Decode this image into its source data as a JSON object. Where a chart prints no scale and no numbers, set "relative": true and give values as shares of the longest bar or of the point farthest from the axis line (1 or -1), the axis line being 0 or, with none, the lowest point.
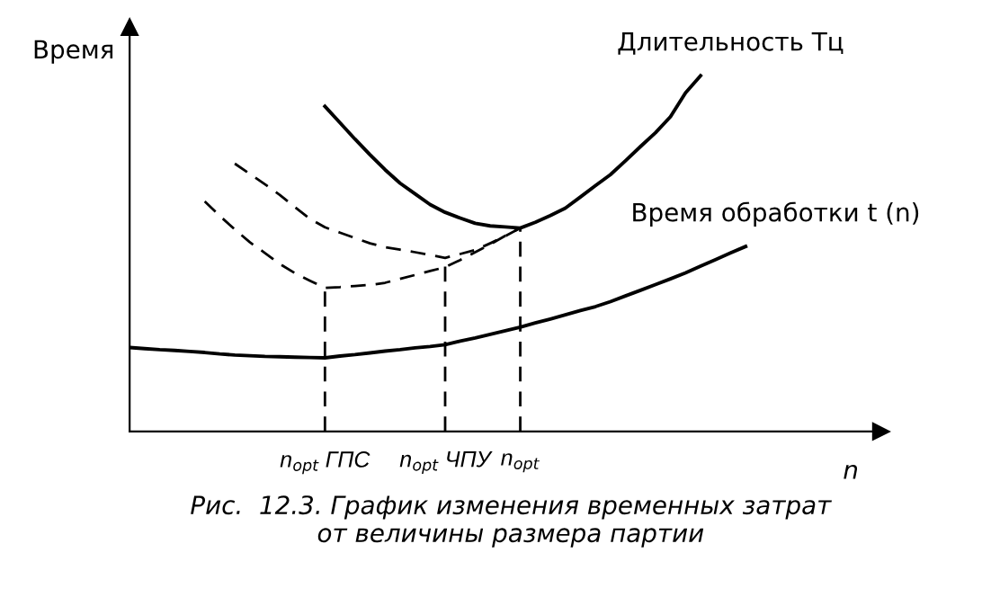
{
  "chart_data": {
    "type": "line",
    "relative": true,
    "ylabel": "Время",
    "xlabel": "n",
    "annotations": [
      "Рис.  12.3. График изменения временных затрат\nот величины размера партии"
    ],
    "categories": [
      null,
      null,
      null,
      null,
      null,
      null,
      null,
      null,
      null,
      null,
      null,
      null,
      null,
      "n$_{opt}$ ГПС",
      null,
      null,
      null,
      null,
      null,
      null,
      null,
      "n$_{opt}$ ЧПУ",
      null,
      null,
      null,
      null,
      "n$_{opt}$",
      null,
      null,
      null,
      null,
      null,
      null,
      null,
      null,
      null,
      null,
      null,
      null,
      null,
      null,
      null,
      null,
      null,
      null,
      null,
      null,
      null,
      null,
      null
    ],
    "tick_labels": "x",
    "marker": "none",
    "ref_lines": [
      {
        "axis": "x",
        "value": "n$_{opt}$ ГПС",
        "color": "#000000",
        "line_style": "dashed"
      },
      {
        "axis": "x",
        "value": "n$_{opt}$ ЧПУ",
        "color": "#000000",
        "line_style": "dashed"
      },
      {
        "axis": "x",
        "value": "n$_{opt}$",
        "color": "#000000",
        "line_style": "dashed"
      }
    ],
    "series": [
      {
        "name": "Длительность Tц",
        "color": "#000000",
        "line_style": "solid",
        "values": [
          null,
          null,
          null,
          null,
          null,
          null,
          null,
          null,
          null,
          null,
          null,
          null,
          null,
          0.914,
          0.868,
          0.822,
          0.778,
          0.736,
          0.698,
          0.668,
          0.638,
          0.616,
          0.6,
          0.585,
          0.578,
          0.575,
          0.572,
          0.588,
          0.607,
          0.628,
          0.659,
          0.691,
          0.722,
          0.761,
          0.801,
          0.84,
          0.885,
          0.952,
          1.0,
          null,
          null,
          null,
          null,
          null,
          null,
          null,
          null,
          null,
          null,
          null
        ]
      },
      {
        "name": "Время обработки t (n)",
        "color": "#000000",
        "line_style": "solid",
        "values": [
          0.236,
          0.233,
          0.23,
          0.228,
          0.225,
          0.222,
          0.218,
          0.215,
          0.213,
          0.211,
          0.21,
          0.209,
          0.208,
          0.207,
          0.212,
          0.216,
          0.221,
          0.226,
          0.23,
          0.235,
          0.239,
          0.244,
          0.254,
          0.263,
          0.273,
          0.283,
          0.293,
          0.305,
          0.316,
          0.328,
          0.34,
          0.351,
          0.365,
          0.381,
          0.397,
          0.413,
          0.429,
          0.446,
          0.465,
          0.483,
          0.502,
          0.52,
          null,
          null,
          null,
          null,
          null,
          null,
          null,
          null
        ]
      },
      {
        "color": "#000000",
        "line_style": "dashed",
        "values": [
          null,
          null,
          null,
          null,
          null,
          null,
          null,
          0.753,
          0.724,
          0.695,
          0.665,
          0.631,
          0.598,
          0.574,
          0.559,
          0.544,
          0.529,
          0.518,
          0.511,
          0.504,
          0.496,
          0.488,
          0.499,
          0.51,
          0.529,
          0.549,
          0.572,
          null,
          null,
          null,
          null,
          null,
          null,
          null,
          null,
          null,
          null,
          null,
          null,
          null,
          null,
          null,
          null,
          null,
          null,
          null,
          null,
          null,
          null,
          null
        ]
      },
      {
        "color": "#000000",
        "line_style": "dashed",
        "values": [
          null,
          null,
          null,
          null,
          null,
          0.647,
          0.606,
          0.568,
          0.532,
          0.502,
          0.471,
          0.445,
          0.424,
          0.404,
          0.406,
          0.409,
          0.412,
          0.418,
          0.429,
          0.44,
          0.451,
          0.462,
          0.482,
          0.504,
          0.526,
          0.55,
          0.572,
          null,
          null,
          null,
          null,
          null,
          null,
          null,
          null,
          null,
          null,
          null,
          null,
          null,
          null,
          null,
          null,
          null,
          null,
          null,
          null,
          null,
          null,
          null
        ]
      }
    ]
  }
}
